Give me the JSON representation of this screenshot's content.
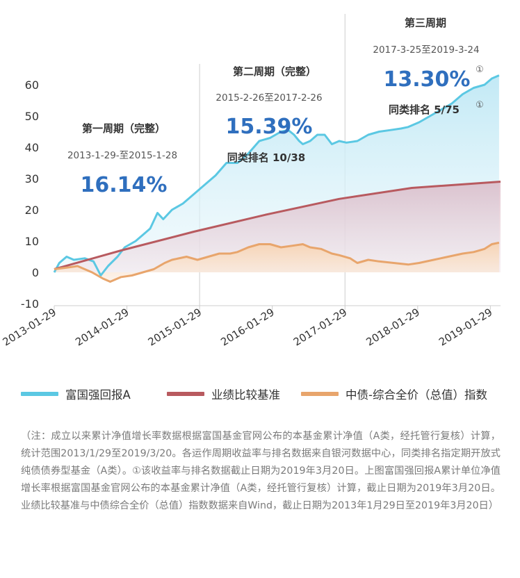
{
  "chart_data": {
    "type": "line",
    "y_ticks": [
      60,
      50,
      40,
      30,
      20,
      10,
      0,
      -10
    ],
    "x_ticks": [
      "2013-01-29",
      "2014-01-29",
      "2015-01-29",
      "2016-01-29",
      "2017-01-29",
      "2018-01-29",
      "2019-01-29"
    ],
    "ylim": [
      -10,
      63
    ],
    "xlim": [
      2013.08,
      2019.22
    ],
    "series": [
      {
        "name": "富国强回报A",
        "color": "#5bc8e3",
        "points": [
          [
            2013.08,
            0
          ],
          [
            2013.15,
            3
          ],
          [
            2013.25,
            5
          ],
          [
            2013.35,
            4
          ],
          [
            2013.5,
            4.5
          ],
          [
            2013.62,
            3.5
          ],
          [
            2013.72,
            -1
          ],
          [
            2013.82,
            2
          ],
          [
            2013.95,
            5
          ],
          [
            2014.05,
            8
          ],
          [
            2014.2,
            10
          ],
          [
            2014.3,
            12
          ],
          [
            2014.4,
            14
          ],
          [
            2014.5,
            19
          ],
          [
            2014.58,
            17
          ],
          [
            2014.7,
            20
          ],
          [
            2014.85,
            22
          ],
          [
            2015.0,
            25
          ],
          [
            2015.15,
            28
          ],
          [
            2015.3,
            31
          ],
          [
            2015.45,
            35
          ],
          [
            2015.6,
            35
          ],
          [
            2015.75,
            38
          ],
          [
            2015.9,
            42
          ],
          [
            2016.05,
            43
          ],
          [
            2016.2,
            45
          ],
          [
            2016.3,
            45.5
          ],
          [
            2016.38,
            44
          ],
          [
            2016.45,
            42
          ],
          [
            2016.5,
            41
          ],
          [
            2016.6,
            42
          ],
          [
            2016.7,
            44
          ],
          [
            2016.8,
            44
          ],
          [
            2016.9,
            41
          ],
          [
            2017.0,
            42
          ],
          [
            2017.1,
            41.5
          ],
          [
            2017.25,
            42
          ],
          [
            2017.4,
            44
          ],
          [
            2017.55,
            45
          ],
          [
            2017.7,
            45.5
          ],
          [
            2017.85,
            46
          ],
          [
            2017.95,
            46.5
          ],
          [
            2018.1,
            48
          ],
          [
            2018.25,
            50
          ],
          [
            2018.4,
            52
          ],
          [
            2018.55,
            54
          ],
          [
            2018.7,
            57
          ],
          [
            2018.85,
            59
          ],
          [
            2019.0,
            60
          ],
          [
            2019.1,
            62
          ],
          [
            2019.2,
            63
          ]
        ]
      },
      {
        "name": "业绩比较基准",
        "color": "#b85a5f",
        "points": [
          [
            2013.08,
            1
          ],
          [
            2014.0,
            7
          ],
          [
            2015.0,
            13
          ],
          [
            2016.0,
            18.5
          ],
          [
            2017.0,
            23.5
          ],
          [
            2018.0,
            27
          ],
          [
            2019.22,
            29
          ]
        ]
      },
      {
        "name": "中债-综合全价（总值）指数",
        "color": "#e8a56c",
        "points": [
          [
            2013.08,
            1
          ],
          [
            2013.25,
            1.5
          ],
          [
            2013.4,
            2
          ],
          [
            2013.5,
            1
          ],
          [
            2013.6,
            0
          ],
          [
            2013.75,
            -2
          ],
          [
            2013.85,
            -3
          ],
          [
            2014.0,
            -1.5
          ],
          [
            2014.15,
            -1
          ],
          [
            2014.3,
            0
          ],
          [
            2014.45,
            1
          ],
          [
            2014.6,
            3
          ],
          [
            2014.7,
            4
          ],
          [
            2014.9,
            5
          ],
          [
            2015.05,
            4
          ],
          [
            2015.2,
            5
          ],
          [
            2015.35,
            6
          ],
          [
            2015.5,
            6
          ],
          [
            2015.6,
            6.5
          ],
          [
            2015.75,
            8
          ],
          [
            2015.9,
            9
          ],
          [
            2016.05,
            9
          ],
          [
            2016.2,
            8
          ],
          [
            2016.35,
            8.5
          ],
          [
            2016.5,
            9
          ],
          [
            2016.6,
            8
          ],
          [
            2016.75,
            7.5
          ],
          [
            2016.9,
            6
          ],
          [
            2017.0,
            5.5
          ],
          [
            2017.15,
            4.5
          ],
          [
            2017.25,
            3
          ],
          [
            2017.4,
            4
          ],
          [
            2017.55,
            3.5
          ],
          [
            2017.75,
            3
          ],
          [
            2017.95,
            2.5
          ],
          [
            2018.1,
            3
          ],
          [
            2018.3,
            4
          ],
          [
            2018.5,
            5
          ],
          [
            2018.7,
            6
          ],
          [
            2018.85,
            6.5
          ],
          [
            2019.0,
            7.5
          ],
          [
            2019.1,
            9
          ],
          [
            2019.2,
            9.5
          ]
        ]
      }
    ],
    "dividers": [
      2015.08,
      2017.08
    ],
    "periods": [
      {
        "title": "第一周期（完整）",
        "dates": "2013-1-29-至2015-1-28",
        "return": "16.14%",
        "rank": ""
      },
      {
        "title": "第二周期（完整）",
        "dates": "2015-2-26至2017-2-26",
        "return": "15.39%",
        "rank": "同类排名 10/38"
      },
      {
        "title": "第三周期",
        "dates": "2017-3-25至2019-3-24",
        "return": "13.30%",
        "rank": "同类排名 5/75",
        "mark": "①"
      }
    ]
  },
  "legend": [
    {
      "label": "富国强回报A",
      "color": "#5bc8e3"
    },
    {
      "label": "业绩比较基准",
      "color": "#b85a5f"
    },
    {
      "label": "中债-综合全价（总值）指数",
      "color": "#e8a56c"
    }
  ],
  "note": "（注：成立以来累计净值增长率数据根据富国基金官网公布的本基金累计净值（A类，经托管行复核）计算，统计范围2013/1/29至2019/3/20。各运作周期收益率与排名数据来自银河数据中心，同类排名指定期开放式纯债债券型基金（A类）。①该收益率与排名数据截止日期为2019年3月20日。上图富国强回报A累计单位净值增长率根据富国基金官网公布的本基金累计净值（A类，经托管行复核）计算，截止日期为2019年3月20日。业绩比较基准与中债综合全价（总值）指数数据来自Wind，截止日期为2013年1月29日至2019年3月20日）"
}
